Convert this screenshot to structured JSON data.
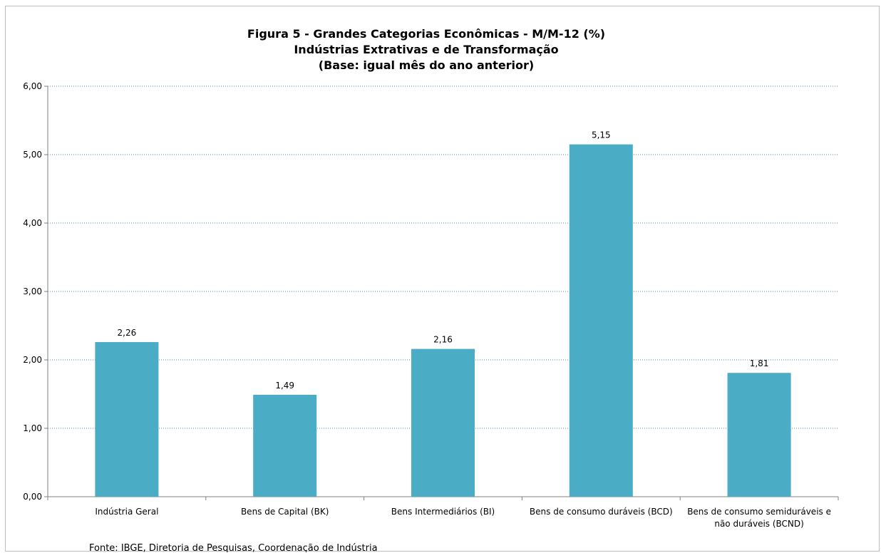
{
  "chart_data": {
    "type": "bar",
    "title": [
      "Figura 5 - Grandes Categorias Econômicas - M/M-12 (%)",
      "Indústrias Extrativas e de Transformação",
      "(Base: igual mês do ano anterior)"
    ],
    "categories": [
      [
        "Indústria Geral"
      ],
      [
        "Bens de Capital (BK)"
      ],
      [
        "Bens Intermediários (BI)"
      ],
      [
        "Bens de consumo duráveis (BCD)"
      ],
      [
        "Bens de consumo semiduráveis e",
        "não duráveis (BCND)"
      ]
    ],
    "values": [
      2.26,
      1.49,
      2.16,
      5.15,
      1.81
    ],
    "data_labels": [
      "2,26",
      "1,49",
      "2,16",
      "5,15",
      "1,81"
    ],
    "yticks": [
      "0,00",
      "1,00",
      "2,00",
      "3,00",
      "4,00",
      "5,00",
      "6,00"
    ],
    "ylim": [
      0,
      6
    ],
    "grid": true,
    "legend": "none",
    "bar_color": "#4bacc6",
    "source": "Fonte: IBGE, Diretoria de Pesquisas, Coordenação de Indústria"
  }
}
